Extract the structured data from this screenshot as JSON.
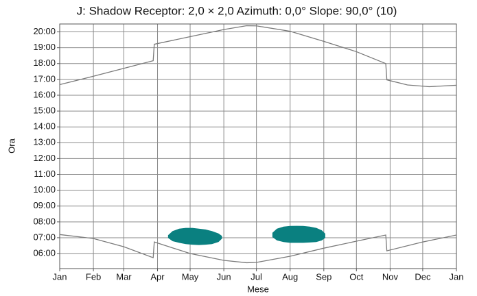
{
  "chart_data": {
    "type": "line",
    "title": "J: Shadow Receptor: 2,0 × 2,0  Azimuth: 0,0°  Slope: 90,0° (10)",
    "x_label": "Mese",
    "y_label": "Ora",
    "xlim": [
      0,
      365
    ],
    "xticks": [
      {
        "value": 0,
        "label": "Jan"
      },
      {
        "value": 31,
        "label": "Feb"
      },
      {
        "value": 59,
        "label": "Mar"
      },
      {
        "value": 90,
        "label": "Apr"
      },
      {
        "value": 120,
        "label": "May"
      },
      {
        "value": 151,
        "label": "Jun"
      },
      {
        "value": 181,
        "label": "Jul"
      },
      {
        "value": 212,
        "label": "Aug"
      },
      {
        "value": 243,
        "label": "Sep"
      },
      {
        "value": 273,
        "label": "Oct"
      },
      {
        "value": 304,
        "label": "Nov"
      },
      {
        "value": 334,
        "label": "Dec"
      },
      {
        "value": 365,
        "label": "Jan"
      }
    ],
    "ylim": [
      5.05,
      20.5
    ],
    "yticks": [
      {
        "value": 6,
        "label": "06:00"
      },
      {
        "value": 7,
        "label": "07:00"
      },
      {
        "value": 8,
        "label": "08:00"
      },
      {
        "value": 9,
        "label": "09:00"
      },
      {
        "value": 10,
        "label": "10:00"
      },
      {
        "value": 11,
        "label": "11:00"
      },
      {
        "value": 12,
        "label": "12:00"
      },
      {
        "value": 13,
        "label": "13:00"
      },
      {
        "value": 14,
        "label": "14:00"
      },
      {
        "value": 15,
        "label": "15:00"
      },
      {
        "value": 16,
        "label": "16:00"
      },
      {
        "value": 17,
        "label": "17:00"
      },
      {
        "value": 18,
        "label": "18:00"
      },
      {
        "value": 19,
        "label": "19:00"
      },
      {
        "value": 20,
        "label": "20:00"
      }
    ],
    "grid": true,
    "series": [
      {
        "color": "#7a7a7a",
        "x": [
          0,
          31,
          59,
          86,
          87,
          120,
          151,
          172,
          181,
          212,
          243,
          273,
          300,
          301,
          320,
          340,
          365
        ],
        "values": [
          16.67,
          17.2,
          17.7,
          18.18,
          19.22,
          19.7,
          20.15,
          20.39,
          20.38,
          20.04,
          19.4,
          18.75,
          18.0,
          16.97,
          16.65,
          16.54,
          16.63
        ]
      },
      {
        "color": "#7a7a7a",
        "x": [
          0,
          31,
          59,
          86,
          87,
          120,
          151,
          172,
          181,
          212,
          243,
          273,
          300,
          301,
          334,
          365
        ],
        "values": [
          7.2,
          6.95,
          6.43,
          5.74,
          6.73,
          6.0,
          5.57,
          5.42,
          5.44,
          5.83,
          6.34,
          6.78,
          7.17,
          6.17,
          6.73,
          7.17
        ]
      }
    ],
    "areas": [
      {
        "color": "#0a8080",
        "x": [
          100,
          104,
          110,
          116,
          122,
          128,
          134,
          140,
          146,
          149
        ],
        "high": [
          7.15,
          7.4,
          7.55,
          7.6,
          7.6,
          7.55,
          7.5,
          7.4,
          7.25,
          7.1
        ],
        "low": [
          7.0,
          6.8,
          6.7,
          6.62,
          6.58,
          6.56,
          6.58,
          6.62,
          6.75,
          6.95
        ]
      },
      {
        "color": "#0a8080",
        "x": [
          196,
          200,
          206,
          212,
          218,
          224,
          230,
          236,
          241,
          244
        ],
        "high": [
          7.3,
          7.55,
          7.68,
          7.72,
          7.73,
          7.72,
          7.68,
          7.6,
          7.45,
          7.25
        ],
        "low": [
          7.05,
          6.85,
          6.75,
          6.7,
          6.7,
          6.7,
          6.72,
          6.75,
          6.85,
          7.0
        ]
      }
    ]
  }
}
